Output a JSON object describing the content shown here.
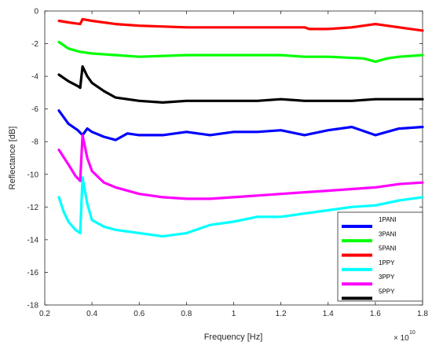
{
  "chart_data": {
    "type": "line",
    "xlabel": "Frequency [Hz]",
    "ylabel": "Reflectance [dB]",
    "x_exponent_base": "× 10",
    "x_exponent_power": "10",
    "xlim": [
      0.2,
      1.8
    ],
    "ylim": [
      -18,
      0
    ],
    "x_ticks": [
      "0.2",
      "0.4",
      "0.6",
      "0.8",
      "1",
      "1.2",
      "1.4",
      "1.6",
      "1.8"
    ],
    "y_ticks": [
      "0",
      "-2",
      "-4",
      "-6",
      "-8",
      "-10",
      "-12",
      "-14",
      "-16",
      "-18"
    ],
    "legend_position": "bottom-right",
    "grid": false,
    "series": [
      {
        "name": "1PANI",
        "color": "#0000ff",
        "points": [
          [
            0.26,
            -6.1
          ],
          [
            0.3,
            -6.9
          ],
          [
            0.34,
            -7.3
          ],
          [
            0.36,
            -7.6
          ],
          [
            0.38,
            -7.2
          ],
          [
            0.4,
            -7.4
          ],
          [
            0.45,
            -7.7
          ],
          [
            0.5,
            -7.9
          ],
          [
            0.55,
            -7.5
          ],
          [
            0.6,
            -7.6
          ],
          [
            0.7,
            -7.6
          ],
          [
            0.8,
            -7.4
          ],
          [
            0.9,
            -7.6
          ],
          [
            1.0,
            -7.4
          ],
          [
            1.1,
            -7.4
          ],
          [
            1.2,
            -7.3
          ],
          [
            1.3,
            -7.6
          ],
          [
            1.4,
            -7.3
          ],
          [
            1.5,
            -7.1
          ],
          [
            1.6,
            -7.6
          ],
          [
            1.7,
            -7.2
          ],
          [
            1.8,
            -7.1
          ]
        ]
      },
      {
        "name": "3PANI",
        "color": "#00ff00",
        "points": [
          [
            0.26,
            -1.9
          ],
          [
            0.3,
            -2.3
          ],
          [
            0.35,
            -2.5
          ],
          [
            0.4,
            -2.6
          ],
          [
            0.5,
            -2.7
          ],
          [
            0.6,
            -2.8
          ],
          [
            0.8,
            -2.7
          ],
          [
            1.0,
            -2.7
          ],
          [
            1.2,
            -2.7
          ],
          [
            1.3,
            -2.8
          ],
          [
            1.4,
            -2.8
          ],
          [
            1.55,
            -2.9
          ],
          [
            1.6,
            -3.1
          ],
          [
            1.65,
            -2.9
          ],
          [
            1.7,
            -2.8
          ],
          [
            1.8,
            -2.7
          ]
        ]
      },
      {
        "name": "5PANI",
        "color": "#ff0000",
        "points": [
          [
            0.26,
            -0.6
          ],
          [
            0.3,
            -0.7
          ],
          [
            0.35,
            -0.8
          ],
          [
            0.36,
            -0.5
          ],
          [
            0.4,
            -0.6
          ],
          [
            0.5,
            -0.8
          ],
          [
            0.6,
            -0.9
          ],
          [
            0.8,
            -1.0
          ],
          [
            1.0,
            -1.0
          ],
          [
            1.2,
            -1.0
          ],
          [
            1.3,
            -1.0
          ],
          [
            1.32,
            -1.1
          ],
          [
            1.4,
            -1.1
          ],
          [
            1.5,
            -1.0
          ],
          [
            1.6,
            -0.8
          ],
          [
            1.7,
            -1.0
          ],
          [
            1.8,
            -1.2
          ]
        ]
      },
      {
        "name": "1PPY",
        "color": "#00ffff",
        "points": [
          [
            0.26,
            -11.4
          ],
          [
            0.28,
            -12.3
          ],
          [
            0.3,
            -12.9
          ],
          [
            0.33,
            -13.4
          ],
          [
            0.35,
            -13.6
          ],
          [
            0.36,
            -10.2
          ],
          [
            0.38,
            -11.8
          ],
          [
            0.4,
            -12.8
          ],
          [
            0.45,
            -13.2
          ],
          [
            0.5,
            -13.4
          ],
          [
            0.6,
            -13.6
          ],
          [
            0.7,
            -13.8
          ],
          [
            0.8,
            -13.6
          ],
          [
            0.9,
            -13.1
          ],
          [
            1.0,
            -12.9
          ],
          [
            1.1,
            -12.6
          ],
          [
            1.2,
            -12.6
          ],
          [
            1.3,
            -12.4
          ],
          [
            1.4,
            -12.2
          ],
          [
            1.5,
            -12.0
          ],
          [
            1.6,
            -11.9
          ],
          [
            1.7,
            -11.6
          ],
          [
            1.8,
            -11.4
          ]
        ]
      },
      {
        "name": "3PPY",
        "color": "#ff00ff",
        "points": [
          [
            0.26,
            -8.5
          ],
          [
            0.3,
            -9.4
          ],
          [
            0.33,
            -10.1
          ],
          [
            0.35,
            -10.4
          ],
          [
            0.36,
            -7.6
          ],
          [
            0.38,
            -9.0
          ],
          [
            0.4,
            -9.8
          ],
          [
            0.45,
            -10.5
          ],
          [
            0.5,
            -10.8
          ],
          [
            0.6,
            -11.2
          ],
          [
            0.7,
            -11.4
          ],
          [
            0.8,
            -11.5
          ],
          [
            0.9,
            -11.5
          ],
          [
            1.0,
            -11.4
          ],
          [
            1.1,
            -11.3
          ],
          [
            1.2,
            -11.2
          ],
          [
            1.3,
            -11.1
          ],
          [
            1.4,
            -11.0
          ],
          [
            1.5,
            -10.9
          ],
          [
            1.6,
            -10.8
          ],
          [
            1.7,
            -10.6
          ],
          [
            1.8,
            -10.5
          ]
        ]
      },
      {
        "name": "5PPY",
        "color": "#000000",
        "points": [
          [
            0.26,
            -3.9
          ],
          [
            0.3,
            -4.3
          ],
          [
            0.34,
            -4.6
          ],
          [
            0.35,
            -4.7
          ],
          [
            0.36,
            -3.4
          ],
          [
            0.38,
            -4.0
          ],
          [
            0.4,
            -4.4
          ],
          [
            0.45,
            -4.9
          ],
          [
            0.5,
            -5.3
          ],
          [
            0.6,
            -5.5
          ],
          [
            0.7,
            -5.6
          ],
          [
            0.8,
            -5.5
          ],
          [
            0.9,
            -5.5
          ],
          [
            1.0,
            -5.5
          ],
          [
            1.1,
            -5.5
          ],
          [
            1.2,
            -5.4
          ],
          [
            1.3,
            -5.5
          ],
          [
            1.4,
            -5.5
          ],
          [
            1.5,
            -5.5
          ],
          [
            1.6,
            -5.4
          ],
          [
            1.7,
            -5.4
          ],
          [
            1.8,
            -5.4
          ]
        ]
      }
    ]
  }
}
